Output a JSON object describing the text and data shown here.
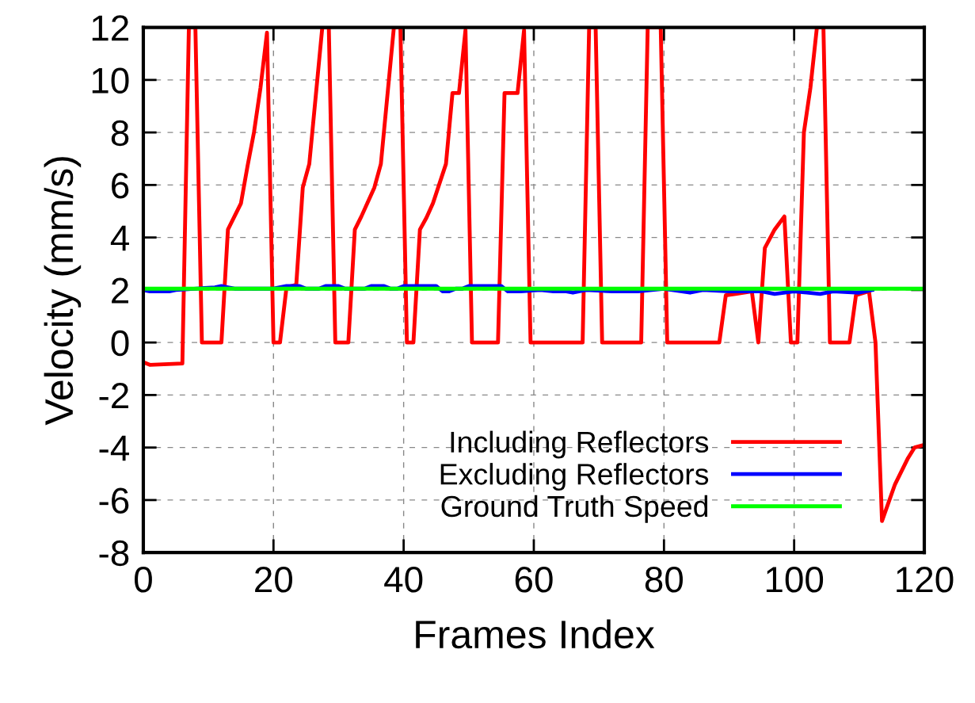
{
  "chart_data": {
    "type": "line",
    "xlabel": "Frames Index",
    "ylabel": "Velocity (mm/s)",
    "xlim": [
      0,
      120
    ],
    "xticks": [
      0,
      20,
      40,
      60,
      80,
      100,
      120
    ],
    "ylim": [
      -8,
      12
    ],
    "yticks": [
      -8,
      -6,
      -4,
      -2,
      0,
      2,
      4,
      6,
      8,
      10,
      12
    ],
    "grid": true,
    "legend": "bottom right",
    "line_style": "solid",
    "series": [
      {
        "name": "Including Reflectors",
        "color": "#ff0000",
        "x": [
          0,
          1,
          6,
          7,
          8,
          9,
          12,
          13,
          14,
          15,
          16,
          17,
          18,
          19,
          20,
          21,
          22,
          23.5,
          24.5,
          25.5,
          27.5,
          28.5,
          29.5,
          31.5,
          32.5,
          33.5,
          35.5,
          36.5,
          38.5,
          39.5,
          40.5,
          41.5,
          42.5,
          43.5,
          44.5,
          46.5,
          47.5,
          48.5,
          49.5,
          50.5,
          54.5,
          55.5,
          57.5,
          58.5,
          59.5,
          67.5,
          68.5,
          69.5,
          70.5,
          76.5,
          77.5,
          79.5,
          80.5,
          88.5,
          89.5,
          91,
          93.5,
          94.5,
          95.5,
          97,
          98.5,
          99.5,
          100.5,
          101.5,
          102.5,
          103.5,
          104.5,
          105.5,
          108.5,
          109.5,
          111.5,
          112.5,
          113.5,
          115.5,
          117.5,
          118.5,
          120
        ],
        "values": [
          -0.75,
          -0.85,
          -0.8,
          12,
          12,
          0,
          0,
          4.3,
          4.8,
          5.3,
          6.7,
          8,
          9.7,
          11.8,
          0,
          0,
          2.1,
          2.2,
          5.9,
          6.8,
          12,
          12,
          0,
          0,
          4.3,
          4.8,
          5.9,
          6.8,
          12,
          12,
          0,
          0,
          4.3,
          4.75,
          5.3,
          6.8,
          9.5,
          9.5,
          11.9,
          0,
          0,
          9.5,
          9.5,
          11.9,
          0,
          0,
          12,
          12,
          0,
          0,
          12,
          12,
          0,
          0,
          1.8,
          1.85,
          1.95,
          0,
          3.6,
          4.3,
          4.8,
          0,
          0,
          8,
          9.7,
          12,
          12,
          0,
          0,
          1.8,
          1.95,
          0,
          -6.8,
          -5.4,
          -4.4,
          -4.0,
          -3.9
        ]
      },
      {
        "name": "Excluding Reflectors",
        "color": "#0000ff",
        "x": [
          0,
          1,
          4,
          5,
          11,
          12,
          13,
          14,
          20,
          22,
          24,
          25,
          27,
          28,
          30,
          31,
          34,
          35,
          37,
          38,
          39,
          40,
          45,
          46,
          47,
          48,
          49,
          50,
          55,
          56,
          58,
          61,
          63,
          65,
          66,
          68,
          72,
          76,
          80,
          84,
          86,
          90,
          95,
          97,
          100,
          104,
          106,
          110,
          112
        ],
        "values": [
          2.0,
          1.95,
          1.95,
          2.0,
          2.1,
          2.15,
          2.1,
          2.05,
          2.05,
          2.15,
          2.15,
          2.05,
          2.05,
          2.15,
          2.15,
          2.05,
          2.05,
          2.15,
          2.15,
          2.05,
          2.05,
          2.15,
          2.15,
          1.95,
          1.95,
          2.05,
          2.05,
          2.15,
          2.15,
          1.95,
          1.95,
          2.0,
          1.95,
          1.95,
          1.9,
          2.0,
          1.95,
          1.95,
          2.05,
          1.9,
          2.0,
          1.95,
          1.95,
          1.85,
          1.95,
          1.85,
          1.95,
          1.9,
          2.0
        ]
      },
      {
        "name": "Ground Truth Speed",
        "color": "#00ff00",
        "x": [
          0,
          120
        ],
        "values": [
          2.05,
          2.05
        ]
      }
    ]
  }
}
